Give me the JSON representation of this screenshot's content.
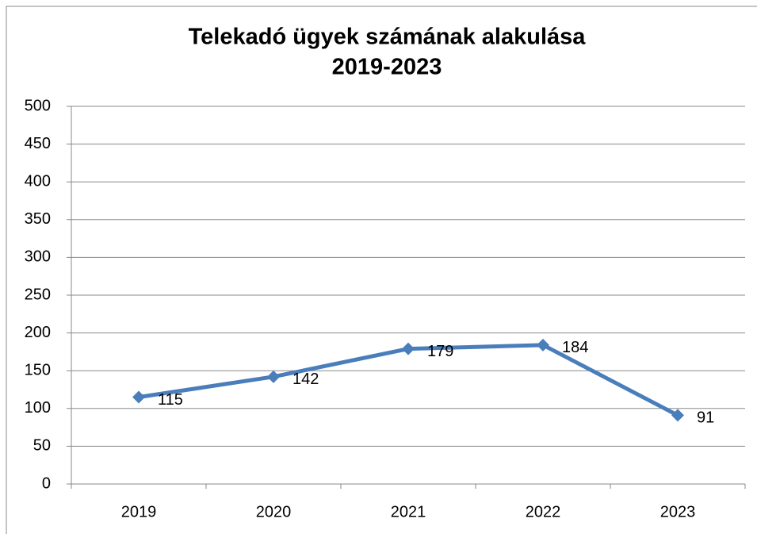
{
  "chart_data": {
    "type": "line",
    "title": "Telekadó ügyek számának alakulása",
    "subtitle": "2019-2023",
    "categories": [
      "2019",
      "2020",
      "2021",
      "2022",
      "2023"
    ],
    "series": [
      {
        "name": "Telekadó ügyek",
        "color": "#4a7ebb",
        "values": [
          115,
          142,
          179,
          184,
          91
        ]
      }
    ],
    "ylim": [
      0,
      500
    ],
    "yticks": [
      0,
      50,
      100,
      150,
      200,
      250,
      300,
      350,
      400,
      450,
      500
    ],
    "grid": true
  }
}
